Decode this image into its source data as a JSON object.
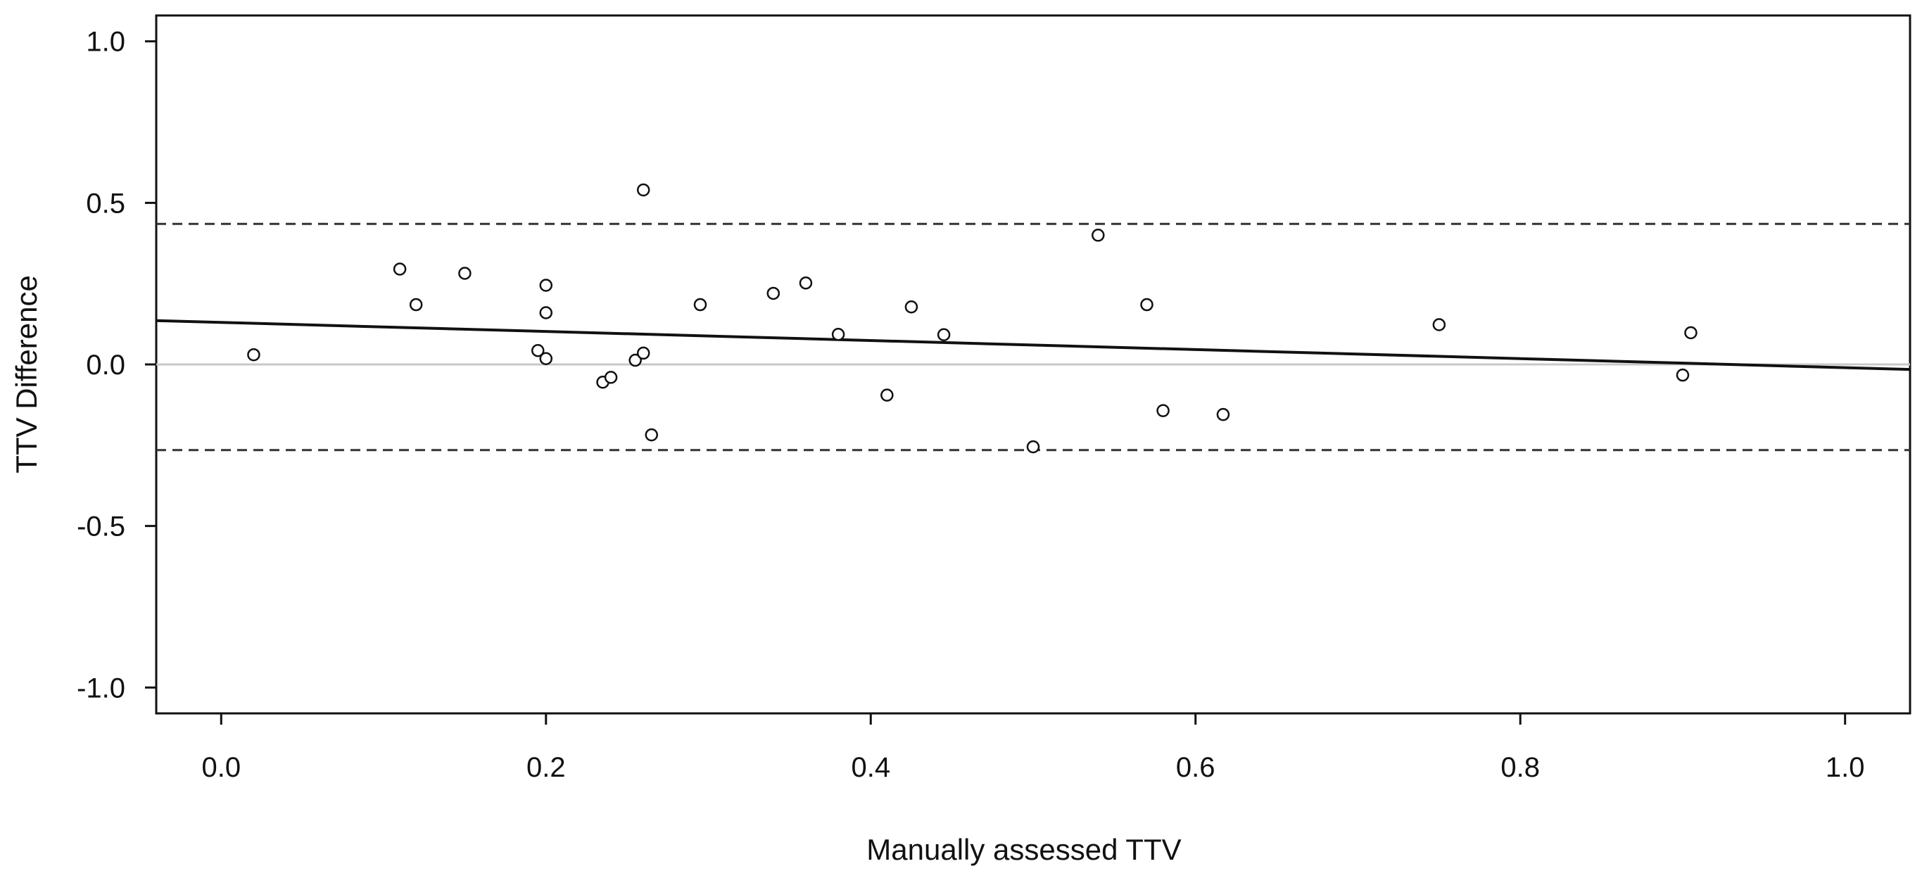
{
  "chart_data": {
    "type": "scatter",
    "title": "",
    "xlabel": "Manually assessed TTV",
    "ylabel": "TTV Difference",
    "xlim": [
      -0.04,
      1.04
    ],
    "ylim": [
      -1.08,
      1.08
    ],
    "x_ticks": [
      0.0,
      0.2,
      0.4,
      0.6,
      0.8,
      1.0
    ],
    "x_tick_labels": [
      "0.0",
      "0.2",
      "0.4",
      "0.6",
      "0.8",
      "1.0"
    ],
    "y_ticks": [
      1.0,
      0.5,
      0.0,
      -0.5,
      -1.0
    ],
    "y_tick_labels": [
      "1.0",
      "0.5",
      "0.0",
      "-0.5",
      "-1.0"
    ],
    "grid": false,
    "zero_line": 0.0,
    "limits_of_agreement": {
      "upper": 0.435,
      "lower": -0.265
    },
    "regression_line": {
      "intercept": 0.13,
      "slope": -0.14
    },
    "points": [
      {
        "x": 0.02,
        "y": 0.03
      },
      {
        "x": 0.11,
        "y": 0.295
      },
      {
        "x": 0.12,
        "y": 0.185
      },
      {
        "x": 0.15,
        "y": 0.282
      },
      {
        "x": 0.195,
        "y": 0.043
      },
      {
        "x": 0.2,
        "y": 0.245
      },
      {
        "x": 0.2,
        "y": 0.16
      },
      {
        "x": 0.2,
        "y": 0.018
      },
      {
        "x": 0.235,
        "y": -0.055
      },
      {
        "x": 0.24,
        "y": -0.04
      },
      {
        "x": 0.255,
        "y": 0.013
      },
      {
        "x": 0.26,
        "y": 0.54
      },
      {
        "x": 0.26,
        "y": 0.035
      },
      {
        "x": 0.265,
        "y": -0.218
      },
      {
        "x": 0.295,
        "y": 0.185
      },
      {
        "x": 0.34,
        "y": 0.22
      },
      {
        "x": 0.36,
        "y": 0.252
      },
      {
        "x": 0.38,
        "y": 0.093
      },
      {
        "x": 0.41,
        "y": -0.095
      },
      {
        "x": 0.425,
        "y": 0.178
      },
      {
        "x": 0.445,
        "y": 0.092
      },
      {
        "x": 0.5,
        "y": -0.255
      },
      {
        "x": 0.54,
        "y": 0.4
      },
      {
        "x": 0.57,
        "y": 0.185
      },
      {
        "x": 0.58,
        "y": -0.143
      },
      {
        "x": 0.617,
        "y": -0.155
      },
      {
        "x": 0.75,
        "y": 0.123
      },
      {
        "x": 0.9,
        "y": -0.033
      },
      {
        "x": 0.905,
        "y": 0.098
      }
    ]
  }
}
